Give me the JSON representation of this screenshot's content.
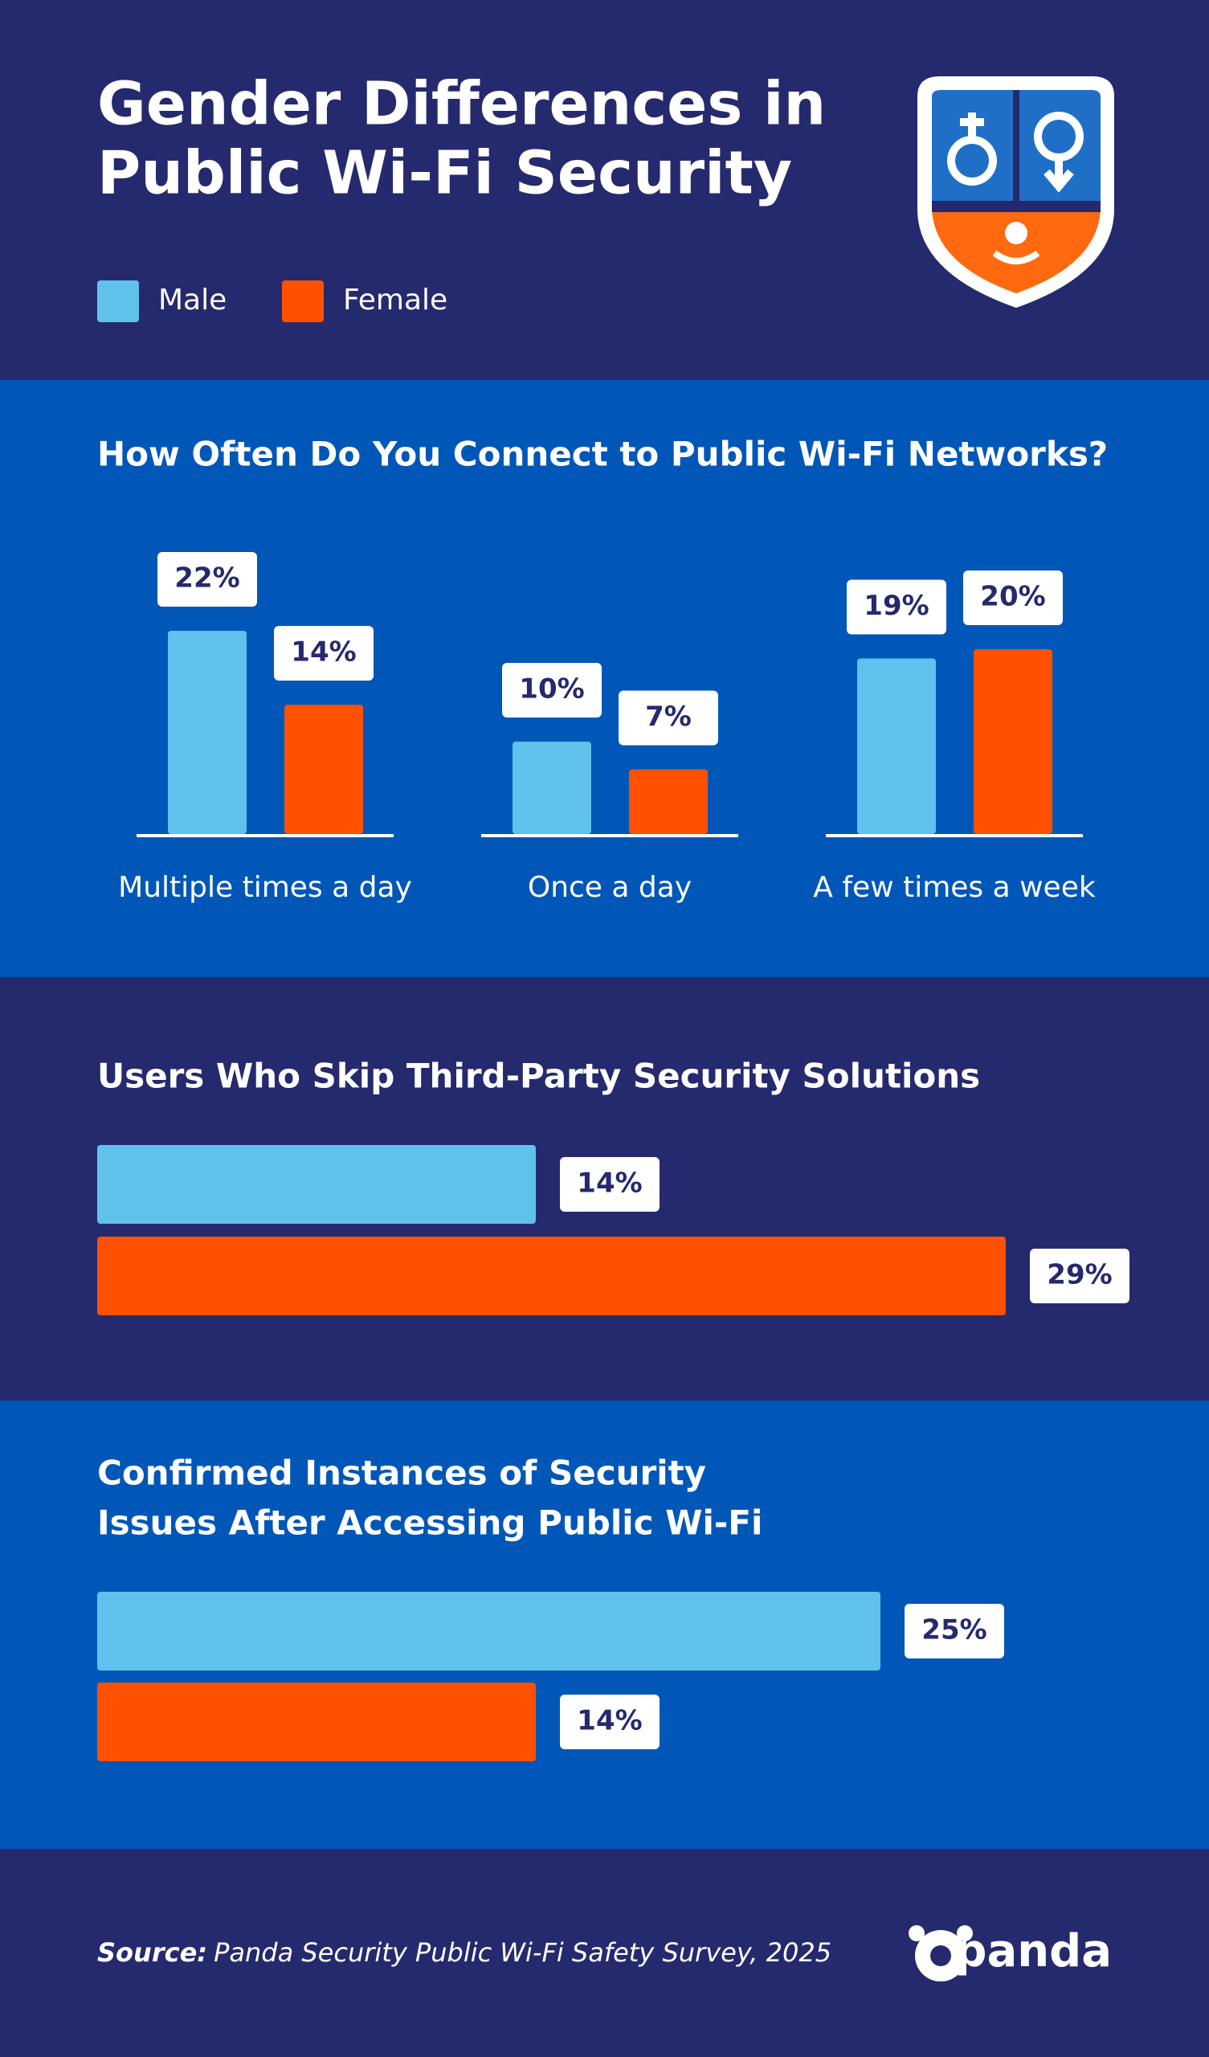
{
  "title": [
    "Gender Differences in",
    "Public Wi-Fi Security"
  ],
  "chart_data": [
    {
      "type": "bar",
      "title": "How Often Do You Connect to Public Wi-Fi Networks?",
      "categories": [
        "Multiple times a day",
        "Once a day",
        "A few times a week"
      ],
      "series": [
        {
          "name": "Male",
          "color": "#5ec2ec",
          "values": [
            22,
            10,
            19
          ],
          "value_labels": [
            "22%",
            "10%",
            "19%"
          ]
        },
        {
          "name": "Female",
          "color": "#ff5100",
          "values": [
            14,
            7,
            20
          ],
          "value_labels": [
            "14%",
            "7%",
            "20%"
          ]
        }
      ]
    },
    {
      "type": "barh",
      "title": "Users Who Skip Third-Party Security Solutions",
      "series": [
        {
          "name": "Male",
          "color": "#5ec2ec",
          "values": [
            14
          ],
          "value_labels": [
            "14%"
          ]
        },
        {
          "name": "Female",
          "color": "#ff5100",
          "values": [
            29
          ],
          "value_labels": [
            "29%"
          ]
        }
      ]
    },
    {
      "type": "barh",
      "title": [
        "Confirmed Instances of Security",
        "Issues After Accessing Public Wi-Fi"
      ],
      "series": [
        {
          "name": "Male",
          "color": "#5ec2ec",
          "values": [
            25
          ],
          "value_labels": [
            "25%"
          ]
        },
        {
          "name": "Female",
          "color": "#ff5100",
          "values": [
            14
          ],
          "value_labels": [
            "14%"
          ]
        }
      ]
    }
  ],
  "source": {
    "label": "Source:",
    "text": "Panda Security Public Wi-Fi Safety Survey, 2025"
  },
  "logo": "panda"
}
